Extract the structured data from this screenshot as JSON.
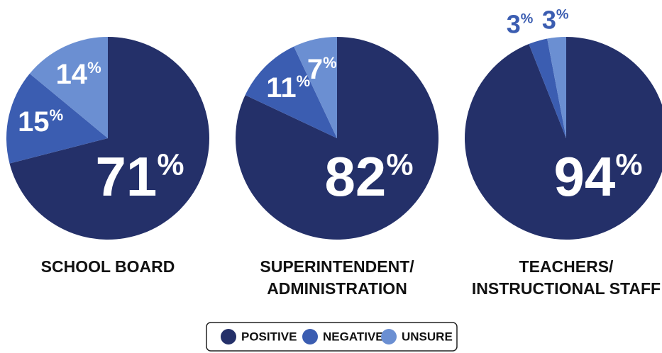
{
  "chart_data": [
    {
      "type": "pie",
      "title": [
        "SCHOOL BOARD"
      ],
      "values": [
        71,
        15,
        14
      ],
      "unit": "%",
      "colors": [
        "#243069",
        "#3b5db1",
        "#6b8fd2"
      ]
    },
    {
      "type": "pie",
      "title": [
        "SUPERINTENDENT/",
        "ADMINISTRATION"
      ],
      "values": [
        82,
        11,
        7
      ],
      "unit": "%",
      "colors": [
        "#243069",
        "#3b5db1",
        "#6b8fd2"
      ]
    },
    {
      "type": "pie",
      "title": [
        "TEACHERS/",
        "INSTRUCTIONAL STAFF"
      ],
      "values": [
        94,
        3,
        3
      ],
      "unit": "%",
      "colors": [
        "#243069",
        "#3b5db1",
        "#6b8fd2"
      ]
    }
  ],
  "legend": {
    "labels": [
      "POSITIVE",
      "NEGATIVE",
      "UNSURE"
    ],
    "colors": [
      "#243069",
      "#3b5db1",
      "#6b8fd2"
    ]
  }
}
